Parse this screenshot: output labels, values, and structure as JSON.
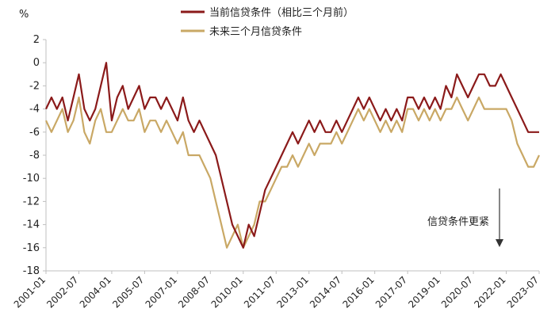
{
  "chart_data": {
    "type": "line",
    "title": "",
    "xlabel": "",
    "ylabel": "%",
    "ylim": [
      -18,
      2
    ],
    "yticks": [
      2,
      0,
      -2,
      -4,
      -6,
      -8,
      -10,
      -12,
      -14,
      -16,
      -18
    ],
    "xlim": [
      "2001-01",
      "2023-07"
    ],
    "xticks": [
      "2001-01",
      "2002-07",
      "2004-01",
      "2005-07",
      "2007-01",
      "2008-07",
      "2010-01",
      "2011-07",
      "2013-01",
      "2014-07",
      "2016-01",
      "2017-07",
      "2019-01",
      "2020-07",
      "2022-01",
      "2023-07"
    ],
    "grid": false,
    "legend": "top-center",
    "annotation": {
      "text": "信贷条件更紧"
    },
    "series": [
      {
        "name": "当前信贷条件（相比三个月前）",
        "color": "#8B1A1A",
        "points": [
          [
            "2001-01",
            -4
          ],
          [
            "2001-04",
            -3
          ],
          [
            "2001-07",
            -4
          ],
          [
            "2001-10",
            -3
          ],
          [
            "2002-01",
            -5
          ],
          [
            "2002-04",
            -3
          ],
          [
            "2002-07",
            -1
          ],
          [
            "2002-10",
            -4
          ],
          [
            "2003-01",
            -5
          ],
          [
            "2003-04",
            -4
          ],
          [
            "2003-07",
            -2
          ],
          [
            "2003-10",
            0
          ],
          [
            "2004-01",
            -5
          ],
          [
            "2004-04",
            -3
          ],
          [
            "2004-07",
            -2
          ],
          [
            "2004-10",
            -4
          ],
          [
            "2005-01",
            -3
          ],
          [
            "2005-04",
            -2
          ],
          [
            "2005-07",
            -4
          ],
          [
            "2005-10",
            -3
          ],
          [
            "2006-01",
            -3
          ],
          [
            "2006-04",
            -4
          ],
          [
            "2006-07",
            -3
          ],
          [
            "2006-10",
            -4
          ],
          [
            "2007-01",
            -5
          ],
          [
            "2007-04",
            -3
          ],
          [
            "2007-07",
            -5
          ],
          [
            "2007-10",
            -6
          ],
          [
            "2008-01",
            -5
          ],
          [
            "2008-04",
            -6
          ],
          [
            "2008-07",
            -7
          ],
          [
            "2008-10",
            -8
          ],
          [
            "2009-01",
            -10
          ],
          [
            "2009-04",
            -12
          ],
          [
            "2009-07",
            -14
          ],
          [
            "2009-10",
            -15
          ],
          [
            "2010-01",
            -16
          ],
          [
            "2010-04",
            -14
          ],
          [
            "2010-07",
            -15
          ],
          [
            "2010-10",
            -13
          ],
          [
            "2011-01",
            -11
          ],
          [
            "2011-04",
            -10
          ],
          [
            "2011-07",
            -9
          ],
          [
            "2011-10",
            -8
          ],
          [
            "2012-01",
            -7
          ],
          [
            "2012-04",
            -6
          ],
          [
            "2012-07",
            -7
          ],
          [
            "2012-10",
            -6
          ],
          [
            "2013-01",
            -5
          ],
          [
            "2013-04",
            -6
          ],
          [
            "2013-07",
            -5
          ],
          [
            "2013-10",
            -6
          ],
          [
            "2014-01",
            -6
          ],
          [
            "2014-04",
            -5
          ],
          [
            "2014-07",
            -6
          ],
          [
            "2014-10",
            -5
          ],
          [
            "2015-01",
            -4
          ],
          [
            "2015-04",
            -3
          ],
          [
            "2015-07",
            -4
          ],
          [
            "2015-10",
            -3
          ],
          [
            "2016-01",
            -4
          ],
          [
            "2016-04",
            -5
          ],
          [
            "2016-07",
            -4
          ],
          [
            "2016-10",
            -5
          ],
          [
            "2017-01",
            -4
          ],
          [
            "2017-04",
            -5
          ],
          [
            "2017-07",
            -3
          ],
          [
            "2017-10",
            -3
          ],
          [
            "2018-01",
            -4
          ],
          [
            "2018-04",
            -3
          ],
          [
            "2018-07",
            -4
          ],
          [
            "2018-10",
            -3
          ],
          [
            "2019-01",
            -4
          ],
          [
            "2019-04",
            -2
          ],
          [
            "2019-07",
            -3
          ],
          [
            "2019-10",
            -1
          ],
          [
            "2020-01",
            -2
          ],
          [
            "2020-04",
            -3
          ],
          [
            "2020-07",
            -2
          ],
          [
            "2020-10",
            -1
          ],
          [
            "2021-01",
            -1
          ],
          [
            "2021-04",
            -2
          ],
          [
            "2021-07",
            -2
          ],
          [
            "2021-10",
            -1
          ],
          [
            "2022-01",
            -2
          ],
          [
            "2022-04",
            -3
          ],
          [
            "2022-07",
            -4
          ],
          [
            "2022-10",
            -5
          ],
          [
            "2023-01",
            -6
          ],
          [
            "2023-04",
            -6
          ],
          [
            "2023-07",
            -6
          ]
        ]
      },
      {
        "name": "未来三个月信贷条件",
        "color": "#C9A865",
        "points": [
          [
            "2001-01",
            -5
          ],
          [
            "2001-04",
            -6
          ],
          [
            "2001-07",
            -5
          ],
          [
            "2001-10",
            -4
          ],
          [
            "2002-01",
            -6
          ],
          [
            "2002-04",
            -5
          ],
          [
            "2002-07",
            -3
          ],
          [
            "2002-10",
            -6
          ],
          [
            "2003-01",
            -7
          ],
          [
            "2003-04",
            -5
          ],
          [
            "2003-07",
            -4
          ],
          [
            "2003-10",
            -6
          ],
          [
            "2004-01",
            -6
          ],
          [
            "2004-04",
            -5
          ],
          [
            "2004-07",
            -4
          ],
          [
            "2004-10",
            -5
          ],
          [
            "2005-01",
            -5
          ],
          [
            "2005-04",
            -4
          ],
          [
            "2005-07",
            -6
          ],
          [
            "2005-10",
            -5
          ],
          [
            "2006-01",
            -5
          ],
          [
            "2006-04",
            -6
          ],
          [
            "2006-07",
            -5
          ],
          [
            "2006-10",
            -6
          ],
          [
            "2007-01",
            -7
          ],
          [
            "2007-04",
            -6
          ],
          [
            "2007-07",
            -8
          ],
          [
            "2007-10",
            -8
          ],
          [
            "2008-01",
            -8
          ],
          [
            "2008-04",
            -9
          ],
          [
            "2008-07",
            -10
          ],
          [
            "2008-10",
            -12
          ],
          [
            "2009-01",
            -14
          ],
          [
            "2009-04",
            -16
          ],
          [
            "2009-07",
            -15
          ],
          [
            "2009-10",
            -14
          ],
          [
            "2010-01",
            -16
          ],
          [
            "2010-04",
            -15
          ],
          [
            "2010-07",
            -14
          ],
          [
            "2010-10",
            -12
          ],
          [
            "2011-01",
            -12
          ],
          [
            "2011-04",
            -11
          ],
          [
            "2011-07",
            -10
          ],
          [
            "2011-10",
            -9
          ],
          [
            "2012-01",
            -9
          ],
          [
            "2012-04",
            -8
          ],
          [
            "2012-07",
            -9
          ],
          [
            "2012-10",
            -8
          ],
          [
            "2013-01",
            -7
          ],
          [
            "2013-04",
            -8
          ],
          [
            "2013-07",
            -7
          ],
          [
            "2013-10",
            -7
          ],
          [
            "2014-01",
            -7
          ],
          [
            "2014-04",
            -6
          ],
          [
            "2014-07",
            -7
          ],
          [
            "2014-10",
            -6
          ],
          [
            "2015-01",
            -5
          ],
          [
            "2015-04",
            -4
          ],
          [
            "2015-07",
            -5
          ],
          [
            "2015-10",
            -4
          ],
          [
            "2016-01",
            -5
          ],
          [
            "2016-04",
            -6
          ],
          [
            "2016-07",
            -5
          ],
          [
            "2016-10",
            -6
          ],
          [
            "2017-01",
            -5
          ],
          [
            "2017-04",
            -6
          ],
          [
            "2017-07",
            -4
          ],
          [
            "2017-10",
            -4
          ],
          [
            "2018-01",
            -5
          ],
          [
            "2018-04",
            -4
          ],
          [
            "2018-07",
            -5
          ],
          [
            "2018-10",
            -4
          ],
          [
            "2019-01",
            -5
          ],
          [
            "2019-04",
            -4
          ],
          [
            "2019-07",
            -4
          ],
          [
            "2019-10",
            -3
          ],
          [
            "2020-01",
            -4
          ],
          [
            "2020-04",
            -5
          ],
          [
            "2020-07",
            -4
          ],
          [
            "2020-10",
            -3
          ],
          [
            "2021-01",
            -4
          ],
          [
            "2021-04",
            -4
          ],
          [
            "2021-07",
            -4
          ],
          [
            "2021-10",
            -4
          ],
          [
            "2022-01",
            -4
          ],
          [
            "2022-04",
            -5
          ],
          [
            "2022-07",
            -7
          ],
          [
            "2022-10",
            -8
          ],
          [
            "2023-01",
            -9
          ],
          [
            "2023-04",
            -9
          ],
          [
            "2023-07",
            -8
          ]
        ]
      }
    ]
  }
}
